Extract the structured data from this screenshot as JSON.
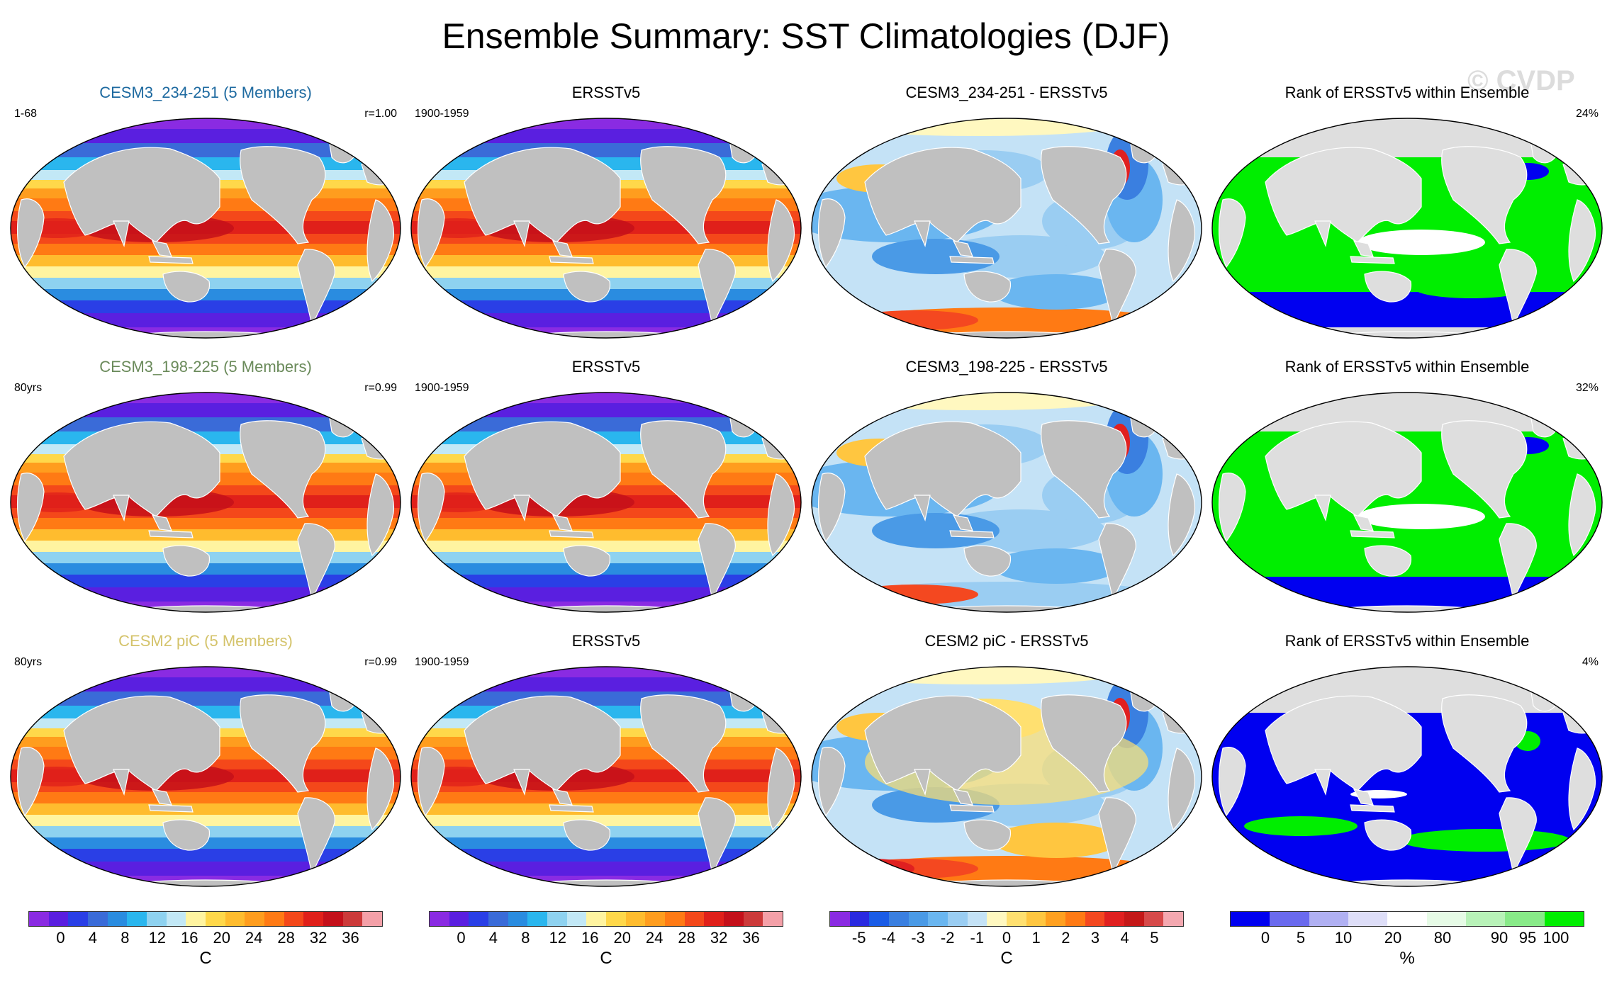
{
  "title": "Ensemble Summary: SST Climatologies (DJF)",
  "watermark": "© CVDP",
  "colors": {
    "land": "#c0c0c0",
    "land_rank": "#dedede",
    "sst_title_row1": "#1e6aa0",
    "sst_title_row2": "#6a8a5a",
    "sst_title_row3": "#d4c36a",
    "temp_scale": [
      "#8a2be2",
      "#5a1fe0",
      "#2a3fe6",
      "#3a6bd8",
      "#2a8ce0",
      "#2ab6ee",
      "#8ed2f0",
      "#c2e8f6",
      "#fff4a0",
      "#ffd84a",
      "#ffbc2e",
      "#ff9d1e",
      "#ff7a14",
      "#f4481a",
      "#e0201a",
      "#c4101a",
      "#cc3a3a",
      "#f4a0a8"
    ],
    "diff_scale": [
      "#8a2be2",
      "#2a2ae0",
      "#1a5ce6",
      "#3a7fe0",
      "#4a9ae6",
      "#6ab6f0",
      "#9acdf2",
      "#c4e2f6",
      "#fff8c0",
      "#ffe070",
      "#ffc640",
      "#ffa020",
      "#ff7a14",
      "#f44820",
      "#e02020",
      "#c41818",
      "#d64a4a",
      "#f4a8b0"
    ],
    "rank_scale": [
      "#0000f0",
      "#6a6aee",
      "#b0b0f2",
      "#dedef8",
      "#ffffff",
      "#e6fbe6",
      "#b8f2b8",
      "#88ea88",
      "#00ee00"
    ]
  },
  "rows": [
    {
      "model_panel": {
        "title": "CESM3_234-251 (5 Members)",
        "left_note": "1-68",
        "right_note": "r=1.00"
      },
      "obs_panel": {
        "title": "ERSSTv5",
        "left_note": "1900-1959"
      },
      "diff_panel": {
        "title": "CESM3_234-251 - ERSSTv5"
      },
      "rank_panel": {
        "title": "Rank of ERSSTv5 within Ensemble",
        "right_note": "24%"
      }
    },
    {
      "model_panel": {
        "title": "CESM3_198-225 (5 Members)",
        "left_note": "80yrs",
        "right_note": "r=0.99"
      },
      "obs_panel": {
        "title": "ERSSTv5",
        "left_note": "1900-1959"
      },
      "diff_panel": {
        "title": "CESM3_198-225 - ERSSTv5"
      },
      "rank_panel": {
        "title": "Rank of ERSSTv5 within Ensemble",
        "right_note": "32%"
      }
    },
    {
      "model_panel": {
        "title": "CESM2 piC (5 Members)",
        "left_note": "80yrs",
        "right_note": "r=0.99"
      },
      "obs_panel": {
        "title": "ERSSTv5",
        "left_note": "1900-1959"
      },
      "diff_panel": {
        "title": "CESM2 piC - ERSSTv5"
      },
      "rank_panel": {
        "title": "Rank of ERSSTv5 within Ensemble",
        "right_note": "4%"
      }
    }
  ],
  "chart_data": {
    "type": "heatmap",
    "title": "Ensemble Summary: SST Climatologies (DJF)",
    "season": "DJF",
    "projection": "Robinson (global)",
    "rank_percent_of_ocean": [
      24,
      32,
      4
    ],
    "pattern_correlation": [
      1.0,
      0.99,
      0.99
    ],
    "colorbars": [
      {
        "name": "climatology",
        "unit": "C",
        "tick_labels": [
          "0",
          "4",
          "8",
          "12",
          "16",
          "20",
          "24",
          "28",
          "32",
          "36"
        ],
        "range": [
          -2,
          38
        ]
      },
      {
        "name": "climatology",
        "unit": "C",
        "tick_labels": [
          "0",
          "4",
          "8",
          "12",
          "16",
          "20",
          "24",
          "28",
          "32",
          "36"
        ],
        "range": [
          -2,
          38
        ]
      },
      {
        "name": "difference",
        "unit": "C",
        "tick_labels": [
          "-5",
          "-4",
          "-3",
          "-2",
          "-1",
          "0",
          "1",
          "2",
          "3",
          "4",
          "5"
        ],
        "range": [
          -5.5,
          5.5
        ]
      },
      {
        "name": "rank",
        "unit": "%",
        "tick_labels": [
          "0",
          "5",
          "10",
          "20",
          "80",
          "90",
          "95",
          "100"
        ],
        "range": [
          0,
          100
        ]
      }
    ]
  }
}
